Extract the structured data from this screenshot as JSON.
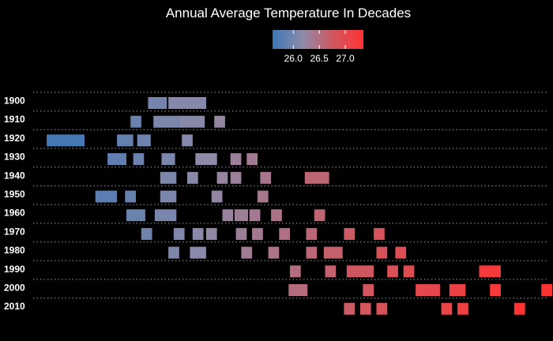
{
  "chart_data": {
    "type": "heatmap",
    "title": "Annual Average Temperature In Decades",
    "xlabel": "",
    "ylabel": "",
    "colorbar": {
      "colors": [
        "#3b77b6",
        "#8e8aa8",
        "#d0575f",
        "#ff3333"
      ],
      "range": [
        25.6,
        27.35
      ],
      "ticks": [
        26.0,
        26.5,
        27.0
      ],
      "tick_labels": [
        "26.0",
        "26.5",
        "27.0"
      ],
      "placement": "top-center"
    },
    "x_range": [
      25.55,
      27.45
    ],
    "grid": "dotted horizontal",
    "rows": [
      {
        "label": "1900",
        "years": [
          {
            "value": 26.01,
            "width": 0.07
          },
          {
            "value": 26.12,
            "width": 0.14
          }
        ]
      },
      {
        "label": "1910",
        "years": [
          {
            "value": 25.93,
            "width": 0.04
          },
          {
            "value": 26.05,
            "width": 0.11
          },
          {
            "value": 26.14,
            "width": 0.09
          },
          {
            "value": 26.24,
            "width": 0.04
          }
        ]
      },
      {
        "label": "1920",
        "years": [
          {
            "value": 25.67,
            "width": 0.14
          },
          {
            "value": 25.89,
            "width": 0.06
          },
          {
            "value": 25.96,
            "width": 0.05
          },
          {
            "value": 26.12,
            "width": 0.04
          }
        ]
      },
      {
        "label": "1930",
        "years": [
          {
            "value": 25.86,
            "width": 0.07
          },
          {
            "value": 25.94,
            "width": 0.04
          },
          {
            "value": 26.05,
            "width": 0.05
          },
          {
            "value": 26.19,
            "width": 0.08
          },
          {
            "value": 26.3,
            "width": 0.04
          },
          {
            "value": 26.36,
            "width": 0.04
          }
        ]
      },
      {
        "label": "1940",
        "years": [
          {
            "value": 26.05,
            "width": 0.06
          },
          {
            "value": 26.14,
            "width": 0.04
          },
          {
            "value": 26.25,
            "width": 0.04
          },
          {
            "value": 26.3,
            "width": 0.04
          },
          {
            "value": 26.41,
            "width": 0.04
          },
          {
            "value": 26.6,
            "width": 0.09
          }
        ]
      },
      {
        "label": "1950",
        "years": [
          {
            "value": 25.82,
            "width": 0.08
          },
          {
            "value": 25.91,
            "width": 0.04
          },
          {
            "value": 26.05,
            "width": 0.06
          },
          {
            "value": 26.23,
            "width": 0.04
          },
          {
            "value": 26.4,
            "width": 0.04
          }
        ]
      },
      {
        "label": "1960",
        "years": [
          {
            "value": 25.93,
            "width": 0.07
          },
          {
            "value": 26.04,
            "width": 0.08
          },
          {
            "value": 26.27,
            "width": 0.04
          },
          {
            "value": 26.32,
            "width": 0.05
          },
          {
            "value": 26.37,
            "width": 0.04
          },
          {
            "value": 26.45,
            "width": 0.04
          },
          {
            "value": 26.61,
            "width": 0.04
          }
        ]
      },
      {
        "label": "1970",
        "years": [
          {
            "value": 25.97,
            "width": 0.04
          },
          {
            "value": 26.09,
            "width": 0.04
          },
          {
            "value": 26.16,
            "width": 0.04
          },
          {
            "value": 26.21,
            "width": 0.04
          },
          {
            "value": 26.32,
            "width": 0.04
          },
          {
            "value": 26.38,
            "width": 0.04
          },
          {
            "value": 26.48,
            "width": 0.04
          },
          {
            "value": 26.58,
            "width": 0.04
          },
          {
            "value": 26.72,
            "width": 0.04
          },
          {
            "value": 26.83,
            "width": 0.04
          }
        ]
      },
      {
        "label": "1980",
        "years": [
          {
            "value": 26.07,
            "width": 0.04
          },
          {
            "value": 26.16,
            "width": 0.06
          },
          {
            "value": 26.34,
            "width": 0.04
          },
          {
            "value": 26.44,
            "width": 0.04
          },
          {
            "value": 26.58,
            "width": 0.04
          },
          {
            "value": 26.66,
            "width": 0.07
          },
          {
            "value": 26.84,
            "width": 0.04
          },
          {
            "value": 26.91,
            "width": 0.04
          }
        ]
      },
      {
        "label": "1990",
        "years": [
          {
            "value": 26.52,
            "width": 0.04
          },
          {
            "value": 26.65,
            "width": 0.04
          },
          {
            "value": 26.76,
            "width": 0.1
          },
          {
            "value": 26.88,
            "width": 0.04
          },
          {
            "value": 26.94,
            "width": 0.04
          },
          {
            "value": 27.24,
            "width": 0.08
          }
        ]
      },
      {
        "label": "2000",
        "years": [
          {
            "value": 26.53,
            "width": 0.07
          },
          {
            "value": 26.79,
            "width": 0.04
          },
          {
            "value": 27.01,
            "width": 0.09
          },
          {
            "value": 27.12,
            "width": 0.06
          },
          {
            "value": 27.26,
            "width": 0.04
          },
          {
            "value": 27.45,
            "width": 0.04
          }
        ]
      },
      {
        "label": "2010",
        "years": [
          {
            "value": 26.72,
            "width": 0.04
          },
          {
            "value": 26.78,
            "width": 0.04
          },
          {
            "value": 26.84,
            "width": 0.04
          },
          {
            "value": 27.08,
            "width": 0.04
          },
          {
            "value": 27.14,
            "width": 0.04
          },
          {
            "value": 27.35,
            "width": 0.04
          }
        ]
      }
    ]
  }
}
